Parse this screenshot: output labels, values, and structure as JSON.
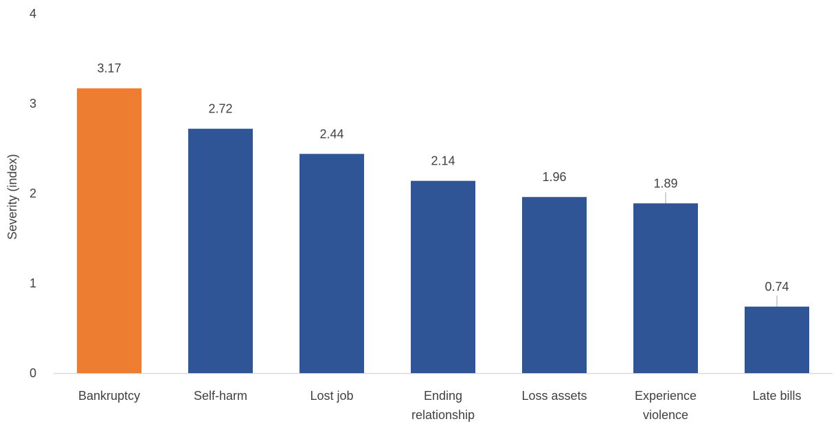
{
  "chart_data": {
    "type": "bar",
    "title": "",
    "xlabel": "",
    "ylabel": "Severity (index)",
    "ylim": [
      0,
      4
    ],
    "yticks": [
      0,
      1,
      2,
      3,
      4
    ],
    "grid": false,
    "categories": [
      [
        "Bankruptcy"
      ],
      [
        "Self-harm"
      ],
      [
        "Lost job"
      ],
      [
        "Ending",
        "relationship"
      ],
      [
        "Loss assets"
      ],
      [
        "Experience",
        "violence"
      ],
      [
        "Late bills"
      ]
    ],
    "values": [
      3.17,
      2.72,
      2.44,
      2.14,
      1.96,
      1.89,
      0.74
    ],
    "data_labels": [
      "3.17",
      "2.72",
      "2.44",
      "2.14",
      "1.96",
      "1.89",
      "0.74"
    ],
    "leader_lines": [
      false,
      false,
      false,
      false,
      false,
      true,
      true
    ],
    "bar_colors": [
      "#ED7D31",
      "#2F5597",
      "#2F5597",
      "#2F5597",
      "#2F5597",
      "#2F5597",
      "#2F5597"
    ],
    "axis_color": "#D9D9D9",
    "text_color": "#404040",
    "leader_color": "#A6A6A6"
  }
}
